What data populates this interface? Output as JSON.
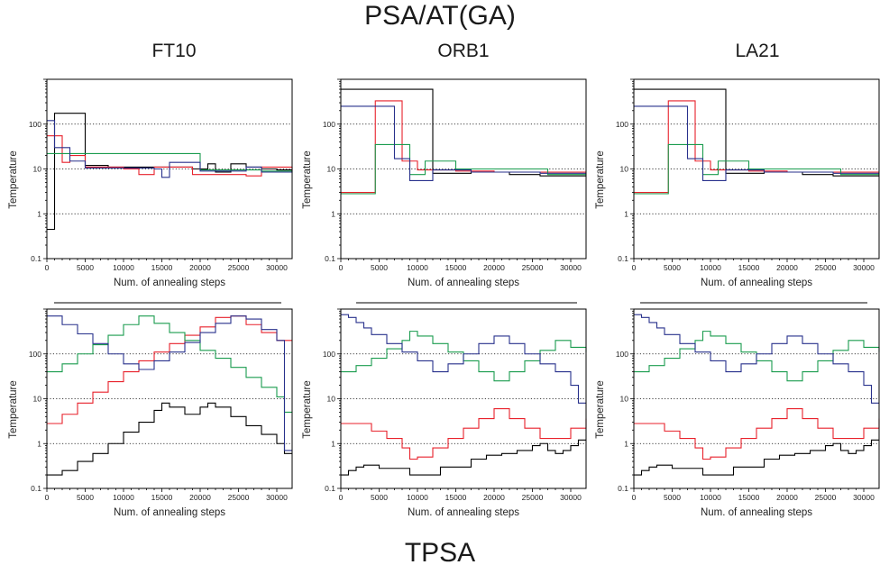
{
  "titles": {
    "top": "PSA/AT(GA)",
    "bottom": "TPSA",
    "columns": [
      "FT10",
      "ORB1",
      "LA21"
    ]
  },
  "colors": {
    "black": "#000000",
    "red": "#e8212b",
    "green": "#1a9c4e",
    "blue": "#28318c",
    "grid": "#000000"
  },
  "chart_data": [
    {
      "type": "line",
      "id": "psa-ft10",
      "xlabel": "Num. of annealing steps",
      "ylabel": "Temperature",
      "xlim": [
        0,
        32000
      ],
      "ylim": [
        0.1,
        1000
      ],
      "yscale": "log",
      "xticks": [
        0,
        5000,
        10000,
        15000,
        20000,
        25000,
        30000
      ],
      "yticks": [
        0.1,
        1,
        10,
        100
      ],
      "ytick_labels": [
        "0.1",
        "1",
        "10",
        "100"
      ],
      "grid": "horizontal dotted at 1, 10, 100",
      "series": [
        {
          "color": "black",
          "x": [
            0,
            800,
            1000,
            5000,
            8000,
            19000,
            21000,
            22000,
            24000,
            26000,
            28000,
            30000,
            32000
          ],
          "y": [
            0.45,
            0.45,
            175,
            12,
            11,
            10,
            13,
            8.5,
            13,
            11,
            10,
            9.5,
            9.5
          ]
        },
        {
          "color": "red",
          "x": [
            0,
            1500,
            2000,
            3000,
            5000,
            10000,
            12000,
            14000,
            19000,
            26000,
            28000,
            32000
          ],
          "y": [
            55,
            55,
            14,
            20,
            11,
            10,
            7.5,
            11,
            7.5,
            7,
            11,
            9.5
          ]
        },
        {
          "color": "green",
          "x": [
            0,
            1000,
            5000,
            9000,
            12000,
            20000,
            26000,
            28000,
            32000
          ],
          "y": [
            22,
            22,
            22,
            22,
            22,
            9.5,
            9.5,
            9,
            9
          ]
        },
        {
          "color": "blue",
          "x": [
            0,
            500,
            1000,
            3000,
            5000,
            10000,
            14000,
            15000,
            16000,
            20000,
            26000,
            28000,
            32000
          ],
          "y": [
            120,
            120,
            30,
            15,
            10.5,
            10.5,
            10,
            6.5,
            14,
            9,
            11,
            8.5,
            9.5
          ]
        }
      ]
    },
    {
      "type": "line",
      "id": "psa-orb1",
      "xlabel": "Num. of annealing steps",
      "ylabel": "Temperature",
      "xlim": [
        0,
        32000
      ],
      "ylim": [
        0.1,
        1000
      ],
      "yscale": "log",
      "xticks": [
        0,
        5000,
        10000,
        15000,
        20000,
        25000,
        30000
      ],
      "yticks": [
        0.1,
        1,
        10,
        100
      ],
      "ytick_labels": [
        "0.1",
        "1",
        "10",
        "100"
      ],
      "grid": "horizontal dotted at 1, 10, 100",
      "series": [
        {
          "color": "black",
          "x": [
            0,
            9000,
            12000,
            13000,
            17000,
            22000,
            26000,
            28000,
            32000
          ],
          "y": [
            600,
            600,
            8,
            8,
            8.5,
            7.5,
            7,
            7,
            7
          ]
        },
        {
          "color": "red",
          "x": [
            0,
            2500,
            4500,
            8000,
            10000,
            15000,
            20000,
            27000,
            32000
          ],
          "y": [
            3,
            3,
            330,
            15,
            9.5,
            9,
            8.5,
            8.5,
            8.5
          ]
        },
        {
          "color": "green",
          "x": [
            0,
            2500,
            4500,
            9000,
            11000,
            15000,
            21000,
            27000,
            32000
          ],
          "y": [
            2.8,
            2.8,
            35,
            7.5,
            15,
            10,
            10,
            7.5,
            7.5
          ]
        },
        {
          "color": "blue",
          "x": [
            0,
            3000,
            7000,
            9000,
            12000,
            17000,
            22000,
            26000,
            32000
          ],
          "y": [
            250,
            250,
            17,
            5.5,
            9.5,
            8.5,
            8.5,
            8,
            8
          ]
        }
      ]
    },
    {
      "type": "line",
      "id": "psa-la21",
      "xlabel": "Num. of annealing steps",
      "ylabel": "Temperature",
      "xlim": [
        0,
        32000
      ],
      "ylim": [
        0.1,
        1000
      ],
      "yscale": "log",
      "xticks": [
        0,
        5000,
        10000,
        15000,
        20000,
        25000,
        30000
      ],
      "yticks": [
        0.1,
        1,
        10,
        100
      ],
      "ytick_labels": [
        "0.1",
        "1",
        "10",
        "100"
      ],
      "grid": "horizontal dotted at 1, 10, 100",
      "series": [
        {
          "color": "black",
          "x": [
            0,
            9000,
            12000,
            13000,
            17000,
            22000,
            26000,
            28000,
            32000
          ],
          "y": [
            600,
            600,
            8,
            8,
            8.5,
            7.5,
            7,
            7,
            7
          ]
        },
        {
          "color": "red",
          "x": [
            0,
            2500,
            4500,
            8000,
            10000,
            15000,
            20000,
            27000,
            32000
          ],
          "y": [
            3,
            3,
            330,
            15,
            9.5,
            9,
            8.5,
            8.5,
            8.5
          ]
        },
        {
          "color": "green",
          "x": [
            0,
            2500,
            4500,
            9000,
            11000,
            15000,
            21000,
            27000,
            32000
          ],
          "y": [
            2.8,
            2.8,
            35,
            7.5,
            15,
            10,
            10,
            7.5,
            7.5
          ]
        },
        {
          "color": "blue",
          "x": [
            0,
            3000,
            7000,
            9000,
            12000,
            17000,
            22000,
            26000,
            32000
          ],
          "y": [
            250,
            250,
            17,
            5.5,
            9.5,
            8.5,
            8.5,
            8,
            8
          ]
        }
      ]
    },
    {
      "type": "line",
      "id": "tpsa-ft10",
      "xlabel": "Num. of annealing steps",
      "ylabel": "Temperature",
      "xlim": [
        0,
        32000
      ],
      "ylim": [
        0.1,
        1000
      ],
      "yscale": "log",
      "xticks": [
        0,
        5000,
        10000,
        15000,
        20000,
        25000,
        30000
      ],
      "yticks": [
        0.1,
        1,
        10,
        100
      ],
      "ytick_labels": [
        "0.1",
        "1",
        "10",
        "100"
      ],
      "grid": "horizontal dotted at 1, 10, 100",
      "series": [
        {
          "color": "black",
          "x": [
            0,
            2000,
            4000,
            6000,
            8000,
            10000,
            12000,
            14000,
            15000,
            16000,
            18000,
            20000,
            21000,
            22000,
            24000,
            26000,
            28000,
            30000,
            31000,
            32000
          ],
          "y": [
            0.2,
            0.25,
            0.4,
            0.6,
            1.0,
            1.8,
            3,
            5.5,
            8,
            6.5,
            4.5,
            6.5,
            8,
            6.5,
            4,
            2.5,
            1.6,
            1,
            0.6,
            0.6
          ]
        },
        {
          "color": "red",
          "x": [
            0,
            2000,
            4000,
            6000,
            8000,
            10000,
            12000,
            14000,
            16000,
            18000,
            20000,
            22000,
            24000,
            26000,
            28000,
            30000,
            32000
          ],
          "y": [
            2.8,
            4.5,
            8,
            14,
            24,
            40,
            70,
            110,
            170,
            260,
            400,
            650,
            700,
            450,
            300,
            200,
            200
          ]
        },
        {
          "color": "green",
          "x": [
            0,
            2000,
            4000,
            6000,
            8000,
            10000,
            12000,
            14000,
            16000,
            18000,
            20000,
            22000,
            24000,
            26000,
            28000,
            30000,
            31000,
            32000
          ],
          "y": [
            40,
            60,
            100,
            160,
            260,
            450,
            700,
            480,
            300,
            200,
            120,
            80,
            50,
            30,
            18,
            11,
            5,
            5
          ]
        },
        {
          "color": "blue",
          "x": [
            0,
            2000,
            4000,
            6000,
            8000,
            10000,
            12000,
            14000,
            16000,
            18000,
            20000,
            22000,
            24000,
            26000,
            28000,
            30000,
            31000,
            32000
          ],
          "y": [
            700,
            450,
            280,
            170,
            100,
            60,
            45,
            70,
            110,
            180,
            300,
            480,
            700,
            600,
            350,
            200,
            0.7,
            0.7
          ]
        }
      ]
    },
    {
      "type": "line",
      "id": "tpsa-orb1",
      "xlabel": "Num. of annealing steps",
      "ylabel": "Temperature",
      "xlim": [
        0,
        32000
      ],
      "ylim": [
        0.1,
        1000
      ],
      "yscale": "log",
      "xticks": [
        0,
        5000,
        10000,
        15000,
        20000,
        25000,
        30000
      ],
      "yticks": [
        0.1,
        1,
        10,
        100
      ],
      "ytick_labels": [
        "0.1",
        "1",
        "10",
        "100"
      ],
      "grid": "horizontal dotted at 1, 10, 100",
      "series": [
        {
          "color": "black",
          "x": [
            0,
            1000,
            2000,
            3000,
            5000,
            9000,
            13000,
            17000,
            19000,
            21000,
            23000,
            25000,
            26000,
            27000,
            28000,
            29000,
            30000,
            31000,
            32000
          ],
          "y": [
            0.2,
            0.25,
            0.3,
            0.33,
            0.28,
            0.2,
            0.3,
            0.45,
            0.55,
            0.6,
            0.7,
            0.9,
            1.0,
            0.7,
            0.6,
            0.7,
            0.9,
            1.2,
            1.2
          ]
        },
        {
          "color": "red",
          "x": [
            0,
            2000,
            4000,
            6000,
            8000,
            9000,
            10000,
            12000,
            14000,
            16000,
            18000,
            20000,
            22000,
            24000,
            26000,
            28000,
            30000,
            32000
          ],
          "y": [
            2.8,
            2.8,
            1.9,
            1.3,
            0.8,
            0.45,
            0.5,
            0.8,
            1.3,
            2.2,
            3.6,
            6,
            3.6,
            2.2,
            1.3,
            1.3,
            2.2,
            3.6
          ]
        },
        {
          "color": "green",
          "x": [
            0,
            2000,
            4000,
            6000,
            8000,
            9000,
            10000,
            12000,
            14000,
            16000,
            18000,
            20000,
            22000,
            24000,
            26000,
            28000,
            30000,
            32000
          ],
          "y": [
            40,
            55,
            80,
            130,
            200,
            320,
            250,
            170,
            110,
            70,
            40,
            25,
            40,
            70,
            120,
            200,
            140,
            110
          ]
        },
        {
          "color": "blue",
          "x": [
            0,
            1000,
            2000,
            3000,
            4000,
            6000,
            8000,
            10000,
            12000,
            14000,
            16000,
            18000,
            20000,
            22000,
            24000,
            26000,
            28000,
            30000,
            31000,
            32000
          ],
          "y": [
            750,
            650,
            500,
            380,
            270,
            170,
            110,
            70,
            40,
            60,
            100,
            170,
            250,
            170,
            100,
            60,
            40,
            20,
            8,
            8
          ]
        }
      ]
    },
    {
      "type": "line",
      "id": "tpsa-la21",
      "xlabel": "Num. of annealing steps",
      "ylabel": "Temperature",
      "xlim": [
        0,
        32000
      ],
      "ylim": [
        0.1,
        1000
      ],
      "yscale": "log",
      "xticks": [
        0,
        5000,
        10000,
        15000,
        20000,
        25000,
        30000
      ],
      "yticks": [
        0.1,
        1,
        10,
        100
      ],
      "ytick_labels": [
        "0.1",
        "1",
        "10",
        "100"
      ],
      "grid": "horizontal dotted at 1, 10, 100",
      "series": [
        {
          "color": "black",
          "x": [
            0,
            1000,
            2000,
            3000,
            5000,
            9000,
            13000,
            17000,
            19000,
            21000,
            23000,
            25000,
            26000,
            27000,
            28000,
            29000,
            30000,
            31000,
            32000
          ],
          "y": [
            0.2,
            0.25,
            0.3,
            0.33,
            0.28,
            0.2,
            0.3,
            0.45,
            0.55,
            0.6,
            0.7,
            0.9,
            1.0,
            0.7,
            0.6,
            0.7,
            0.9,
            1.2,
            1.2
          ]
        },
        {
          "color": "red",
          "x": [
            0,
            2000,
            4000,
            6000,
            8000,
            9000,
            10000,
            12000,
            14000,
            16000,
            18000,
            20000,
            22000,
            24000,
            26000,
            28000,
            30000,
            32000
          ],
          "y": [
            2.8,
            2.8,
            1.9,
            1.3,
            0.8,
            0.45,
            0.5,
            0.8,
            1.3,
            2.2,
            3.6,
            6,
            3.6,
            2.2,
            1.3,
            1.3,
            2.2,
            3.6
          ]
        },
        {
          "color": "green",
          "x": [
            0,
            2000,
            4000,
            6000,
            8000,
            9000,
            10000,
            12000,
            14000,
            16000,
            18000,
            20000,
            22000,
            24000,
            26000,
            28000,
            30000,
            32000
          ],
          "y": [
            40,
            55,
            80,
            130,
            200,
            320,
            250,
            170,
            110,
            70,
            40,
            25,
            40,
            70,
            120,
            200,
            140,
            110
          ]
        },
        {
          "color": "blue",
          "x": [
            0,
            1000,
            2000,
            3000,
            4000,
            6000,
            8000,
            10000,
            12000,
            14000,
            16000,
            18000,
            20000,
            22000,
            24000,
            26000,
            28000,
            30000,
            31000,
            32000
          ],
          "y": [
            750,
            650,
            500,
            380,
            270,
            170,
            110,
            70,
            40,
            60,
            100,
            170,
            250,
            170,
            100,
            60,
            40,
            20,
            8,
            8
          ]
        }
      ]
    }
  ]
}
